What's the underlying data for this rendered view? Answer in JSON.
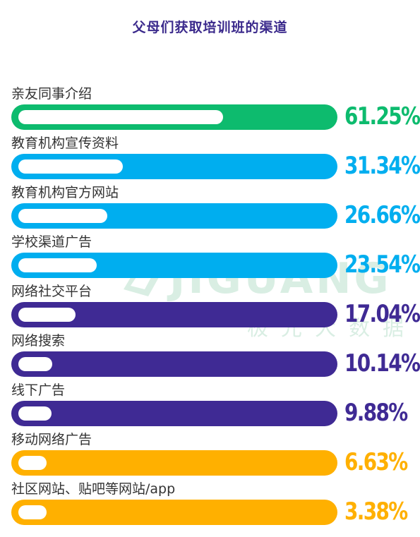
{
  "chart_data": {
    "type": "bar",
    "title": "父母们获取培训班的渠道",
    "categories": [
      "亲友同事介绍",
      "教育机构宣传资料",
      "教育机构官方网站",
      "学校渠道广告",
      "网络社交平台",
      "网络搜索",
      "线下广告",
      "移动网络广告",
      "社区网站、贴吧等网站/app"
    ],
    "values": [
      61.25,
      31.34,
      26.66,
      23.54,
      17.04,
      10.14,
      9.88,
      6.63,
      3.38
    ],
    "value_labels": [
      "61.25%",
      "31.34%",
      "26.66%",
      "23.54%",
      "17.04%",
      "10.14%",
      "9.88%",
      "6.63%",
      "3.38%"
    ],
    "colors": [
      "#0dbb6e",
      "#00aeef",
      "#00aeef",
      "#00aeef",
      "#3f2a94",
      "#3f2a94",
      "#3f2a94",
      "#ffb000",
      "#ffb000"
    ],
    "xlim": [
      0,
      100
    ],
    "grid": false
  },
  "watermark": {
    "brand": "JIGUANG",
    "subtitle": "极光大数据"
  }
}
